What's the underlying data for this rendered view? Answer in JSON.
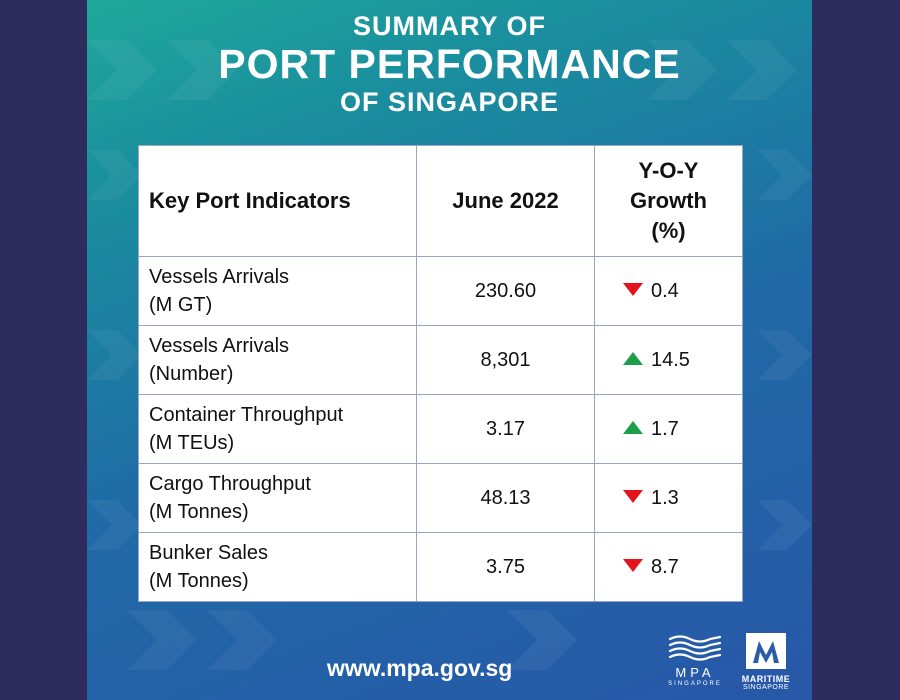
{
  "title": {
    "top": "SUMMARY OF",
    "main": "PORT PERFORMANCE",
    "bottom": "OF SINGAPORE"
  },
  "table": {
    "headers": {
      "indicator": "Key Port Indicators",
      "period": "June 2022",
      "growth_line1": "Y-O-Y",
      "growth_line2": "Growth",
      "growth_line3": "(%)"
    },
    "rows": [
      {
        "label": "Vessels Arrivals",
        "unit": "(M GT)",
        "value": "230.60",
        "direction": "down",
        "growth": "0.4"
      },
      {
        "label": "Vessels Arrivals",
        "unit": "(Number)",
        "value": "8,301",
        "direction": "up",
        "growth": "14.5"
      },
      {
        "label": "Container Throughput",
        "unit": "(M TEUs)",
        "value": "3.17",
        "direction": "up",
        "growth": "1.7"
      },
      {
        "label": "Cargo Throughput",
        "unit": "(M Tonnes)",
        "value": "48.13",
        "direction": "down",
        "growth": "1.3"
      },
      {
        "label": "Bunker Sales",
        "unit": "(M Tonnes)",
        "value": "3.75",
        "direction": "down",
        "growth": "8.7"
      }
    ]
  },
  "footer": {
    "website": "www.mpa.gov.sg",
    "mpa_logo_text": "MPA",
    "mpa_logo_sub": "SINGAPORE",
    "maritime_logo_line1": "MARITIME",
    "maritime_logo_line2": "SINGAPORE"
  },
  "colors": {
    "up": "#1d9e4a",
    "down": "#e3141b"
  }
}
